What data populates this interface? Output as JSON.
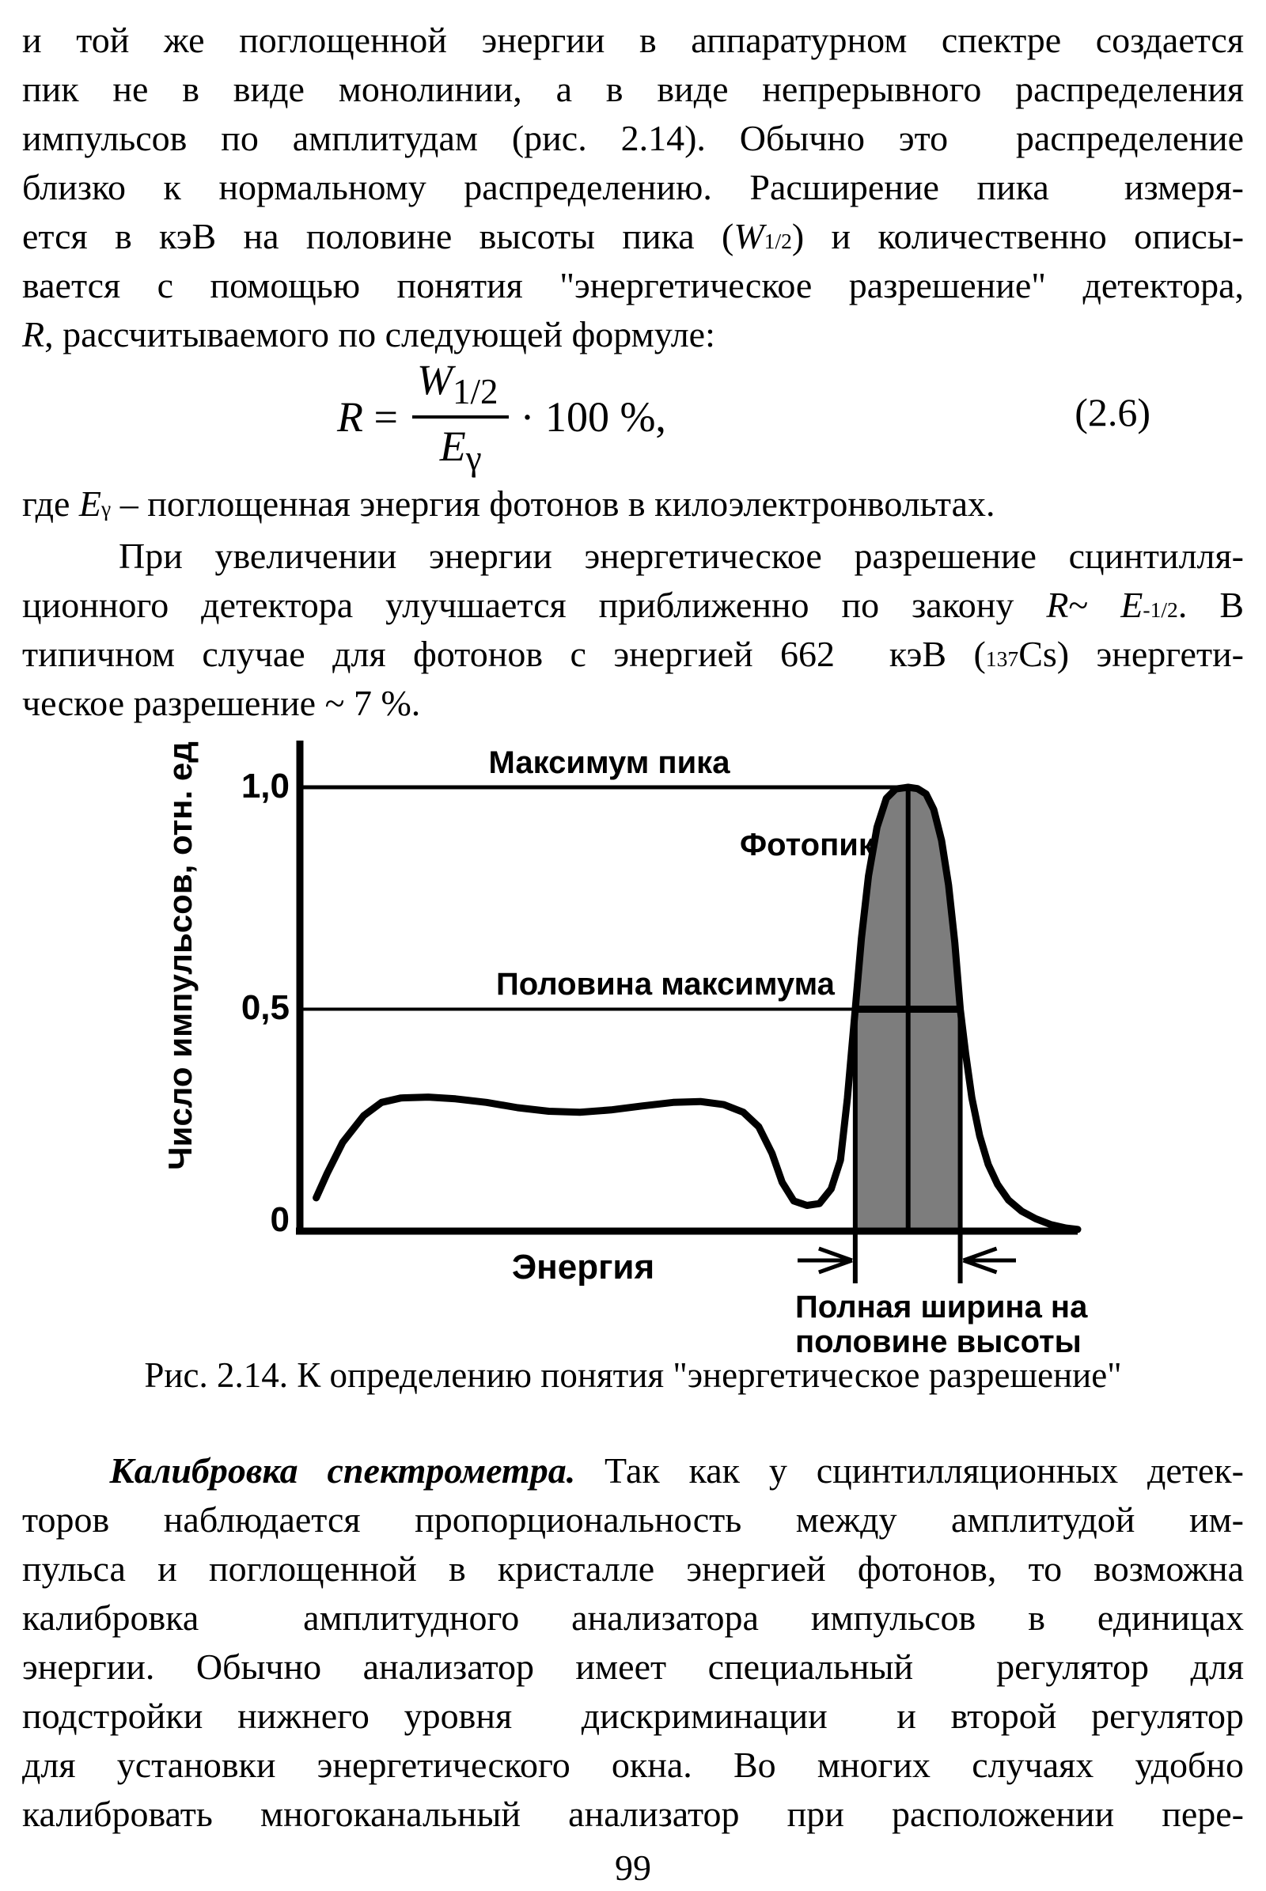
{
  "page_number": "99",
  "paragraphs": {
    "p1_lines": [
      "и той же поглощенной энергии в аппаратурном спектре создается",
      "пик не в виде монолинии, а в виде непрерывного распределения",
      "импульсов по амплитудам (рис. 2.14). Обычно это  распределение",
      "близко к нормальному распределению. Расширение пика  измеря-",
      "ется в кэВ на половине высоты пика (<i>W</i><sub>1/2</sub>) и количественно описы-",
      "вается с помощью понятия \"энергетическое разрешение\" детектора,"
    ],
    "p1_last": "<i>R</i>, рассчитываемого по следующей формуле:",
    "where_line": "где <i>E</i><sub>γ</sub> – поглощенная энергия фотонов в килоэлектронвольтах.",
    "p2_lines": [
      "   При увеличении энергии энергетическое разрешение сцинтилля-",
      "ционного детектора улучшается приближенно по закону <i>R</i>~ <i>E</i><sup>-1/2</sup>. В",
      "типичном случае для фотонов с энергией 662  кэВ (<sup>137</sup>Cs) энергети-"
    ],
    "p2_last": "ческое разрешение ~ 7 %.",
    "p3_lines": [
      "   <b><i>Калибровка спектрометра.</i></b> Так как у сцинтилляционных детек-",
      "торов наблюдается пропорциональность между амплитудой им-",
      "пульса и поглощенной в кристалле энергией фотонов, то возможна",
      "калибровка  амплитудного анализатора импульсов в единицах",
      "энергии. Обычно анализатор имеет специальный  регулятор для",
      "подстройки нижнего уровня  дискриминации  и второй регулятор",
      "для установки энергетического окна. Во многих случаях удобно",
      "калибровать многоканальный анализатор при расположении пере-"
    ]
  },
  "equation": {
    "lhs": "<i>R</i> =",
    "numerator": "<i>W</i><sub>1/2</sub>",
    "denominator": "<i>E</i><sub>γ</sub>",
    "rhs": "· 100 %,",
    "number": "(2.6)"
  },
  "chart_data": {
    "type": "line",
    "title": "Рис. 2.14. К определению понятия \"энергетическое разрешение\"",
    "xlabel": "Энергия",
    "ylabel": "Число импульсов, отн. ед",
    "ytick_labels": [
      "1,0",
      "0,5",
      "0"
    ],
    "ytick_values": [
      1.0,
      0.5,
      0
    ],
    "xlim": [
      0,
      1
    ],
    "ylim": [
      0,
      1.05
    ],
    "grid": false,
    "legend": "none",
    "annotations": {
      "peak_max": "Максимум пика",
      "half_max": "Половина максимума",
      "photopeak": "Фотопик",
      "fwhm_line1": "Полная ширина на",
      "fwhm_line2": "половине высоты"
    },
    "series": [
      {
        "name": "аппаратурный спектр",
        "points": [
          [
            0.021,
            0.075
          ],
          [
            0.035,
            0.13
          ],
          [
            0.055,
            0.2
          ],
          [
            0.082,
            0.26
          ],
          [
            0.105,
            0.29
          ],
          [
            0.13,
            0.3
          ],
          [
            0.165,
            0.302
          ],
          [
            0.2,
            0.298
          ],
          [
            0.24,
            0.29
          ],
          [
            0.28,
            0.278
          ],
          [
            0.32,
            0.27
          ],
          [
            0.36,
            0.268
          ],
          [
            0.4,
            0.273
          ],
          [
            0.44,
            0.282
          ],
          [
            0.48,
            0.29
          ],
          [
            0.515,
            0.292
          ],
          [
            0.545,
            0.285
          ],
          [
            0.57,
            0.268
          ],
          [
            0.59,
            0.235
          ],
          [
            0.607,
            0.175
          ],
          [
            0.62,
            0.11
          ],
          [
            0.635,
            0.068
          ],
          [
            0.652,
            0.058
          ],
          [
            0.668,
            0.062
          ],
          [
            0.683,
            0.095
          ],
          [
            0.695,
            0.16
          ],
          [
            0.704,
            0.3
          ],
          [
            0.71,
            0.42
          ],
          [
            0.714,
            0.5
          ],
          [
            0.722,
            0.66
          ],
          [
            0.731,
            0.8
          ],
          [
            0.742,
            0.91
          ],
          [
            0.754,
            0.975
          ],
          [
            0.766,
            0.996
          ],
          [
            0.782,
            1.0
          ],
          [
            0.794,
            0.997
          ],
          [
            0.805,
            0.985
          ],
          [
            0.815,
            0.95
          ],
          [
            0.825,
            0.88
          ],
          [
            0.834,
            0.78
          ],
          [
            0.842,
            0.65
          ],
          [
            0.849,
            0.5
          ],
          [
            0.856,
            0.4
          ],
          [
            0.864,
            0.3
          ],
          [
            0.874,
            0.215
          ],
          [
            0.885,
            0.15
          ],
          [
            0.897,
            0.105
          ],
          [
            0.911,
            0.07
          ],
          [
            0.928,
            0.045
          ],
          [
            0.946,
            0.028
          ],
          [
            0.965,
            0.015
          ],
          [
            0.985,
            0.007
          ],
          [
            1.0,
            0.004
          ]
        ]
      }
    ],
    "fwhm": {
      "left_x": 0.714,
      "right_x": 0.849,
      "center_x": 0.782,
      "level": 0.5
    },
    "colors": {
      "curve": "#000000",
      "fill": "#7d7d7d",
      "background": "#ffffff"
    }
  }
}
